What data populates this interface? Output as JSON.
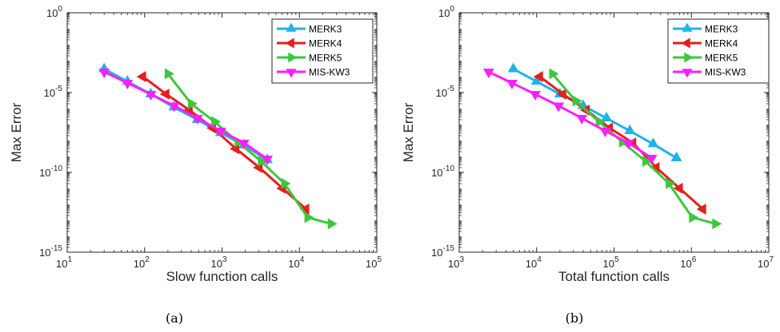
{
  "chart_data": [
    {
      "type": "line",
      "caption": "(a)",
      "xlabel": "Slow function calls",
      "ylabel": "Max Error",
      "xscale": "log",
      "yscale": "log",
      "xlim": [
        10,
        100000
      ],
      "ylim": [
        1e-15,
        1
      ],
      "xticks": [
        {
          "value": 10,
          "base": "10",
          "exp": "1"
        },
        {
          "value": 100,
          "base": "10",
          "exp": "2"
        },
        {
          "value": 1000,
          "base": "10",
          "exp": "3"
        },
        {
          "value": 10000,
          "base": "10",
          "exp": "4"
        },
        {
          "value": 100000,
          "base": "10",
          "exp": "5"
        }
      ],
      "yticks": [
        {
          "value": 1e-15,
          "base": "10",
          "exp": "-15"
        },
        {
          "value": 1e-10,
          "base": "10",
          "exp": "-10"
        },
        {
          "value": 1e-05,
          "base": "10",
          "exp": "-5"
        },
        {
          "value": 1,
          "base": "10",
          "exp": "0"
        }
      ],
      "legend_position": "top-right",
      "series": [
        {
          "name": "MERK3",
          "color": "#1eb4e6",
          "marker": "up",
          "x": [
            30,
            60,
            120,
            240,
            480,
            960,
            1920,
            3840
          ],
          "y": [
            0.0003,
            5e-05,
            8e-06,
            1.2e-06,
            2e-07,
            3e-08,
            5e-09,
            6e-10
          ]
        },
        {
          "name": "MERK4",
          "color": "#e61e1e",
          "marker": "left",
          "x": [
            95,
            190,
            380,
            760,
            1520,
            3040,
            6080,
            12160
          ],
          "y": [
            0.0001,
            8e-06,
            8e-07,
            6e-08,
            3e-09,
            2e-10,
            1e-11,
            5e-13
          ]
        },
        {
          "name": "MERK5",
          "color": "#3cc83c",
          "marker": "right",
          "x": [
            200,
            400,
            800,
            1600,
            3200,
            6400,
            12800,
            25600
          ],
          "y": [
            0.00015,
            2e-06,
            1.5e-07,
            8e-09,
            5e-10,
            2e-11,
            1.5e-13,
            6e-14
          ]
        },
        {
          "name": "MIS-KW3",
          "color": "#ff1eff",
          "marker": "down",
          "x": [
            30,
            60,
            120,
            240,
            480,
            960,
            1920,
            3840
          ],
          "y": [
            0.0002,
            4e-05,
            8e-06,
            1.5e-06,
            2.5e-07,
            4e-08,
            7e-09,
            7e-10
          ]
        }
      ]
    },
    {
      "type": "line",
      "caption": "(b)",
      "xlabel": "Total function calls",
      "ylabel": "Max Error",
      "xscale": "log",
      "yscale": "log",
      "xlim": [
        1000,
        10000000
      ],
      "ylim": [
        1e-15,
        1
      ],
      "xticks": [
        {
          "value": 1000,
          "base": "10",
          "exp": "3"
        },
        {
          "value": 10000,
          "base": "10",
          "exp": "4"
        },
        {
          "value": 100000,
          "base": "10",
          "exp": "5"
        },
        {
          "value": 1000000,
          "base": "10",
          "exp": "6"
        },
        {
          "value": 10000000,
          "base": "10",
          "exp": "7"
        }
      ],
      "yticks": [
        {
          "value": 1e-15,
          "base": "10",
          "exp": "-15"
        },
        {
          "value": 1e-10,
          "base": "10",
          "exp": "-10"
        },
        {
          "value": 1e-05,
          "base": "10",
          "exp": "-5"
        },
        {
          "value": 1,
          "base": "10",
          "exp": "0"
        }
      ],
      "legend_position": "top-right",
      "series": [
        {
          "name": "MERK3",
          "color": "#1eb4e6",
          "marker": "up",
          "x": [
            5000,
            10000,
            20000,
            40000,
            80000,
            160000,
            320000,
            640000
          ],
          "y": [
            0.0003,
            5e-05,
            8e-06,
            1.5e-06,
            2.5e-07,
            4e-08,
            6e-09,
            8e-10
          ]
        },
        {
          "name": "MERK4",
          "color": "#e61e1e",
          "marker": "left",
          "x": [
            11000,
            22000,
            44000,
            88000,
            176000,
            352000,
            704000,
            1408000
          ],
          "y": [
            0.0001,
            8e-06,
            8e-07,
            6e-08,
            7e-09,
            2e-10,
            1e-11,
            5e-13
          ]
        },
        {
          "name": "MERK5",
          "color": "#3cc83c",
          "marker": "right",
          "x": [
            16000,
            32000,
            64000,
            128000,
            256000,
            512000,
            1024000,
            2048000
          ],
          "y": [
            0.00015,
            3e-06,
            1.5e-07,
            8e-09,
            5e-10,
            2e-11,
            1.5e-13,
            6e-14
          ]
        },
        {
          "name": "MIS-KW3",
          "color": "#ff1eff",
          "marker": "down",
          "x": [
            2400,
            4800,
            9600,
            19200,
            38400,
            76800,
            153600,
            307200
          ],
          "y": [
            0.0002,
            4e-05,
            8e-06,
            1.5e-06,
            2.5e-07,
            4e-08,
            7e-09,
            8e-10
          ]
        }
      ]
    }
  ]
}
